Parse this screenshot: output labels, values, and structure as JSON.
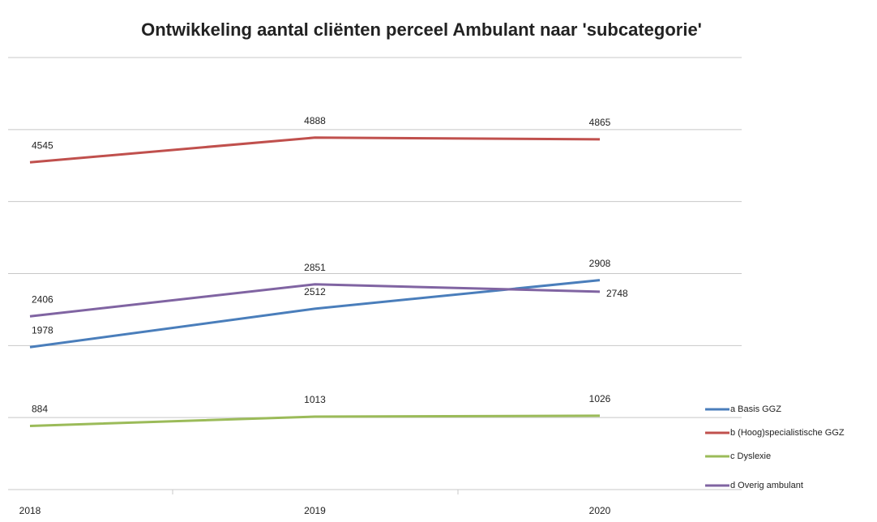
{
  "chart_data": {
    "type": "line",
    "title": "Ontwikkeling aantal cliënten perceel Ambulant naar 'subcategorie'",
    "categories": [
      "2018",
      "2019",
      "2020"
    ],
    "series": [
      {
        "name": "a Basis GGZ",
        "color": "#4a7ebb",
        "values": [
          1978,
          2512,
          2908
        ]
      },
      {
        "name": "b (Hoog)specialistische GGZ",
        "color": "#c0504d",
        "values": [
          4545,
          4888,
          4865
        ]
      },
      {
        "name": "c Dyslexie",
        "color": "#9bbb59",
        "values": [
          884,
          1013,
          1026
        ]
      },
      {
        "name": "d Overig ambulant",
        "color": "#8064a2",
        "values": [
          2406,
          2851,
          2748
        ]
      }
    ],
    "ylim": [
      0,
      6000
    ],
    "yticks": [
      0,
      1000,
      2000,
      3000,
      4000,
      5000,
      6000
    ],
    "grid": true,
    "legend": "right"
  }
}
